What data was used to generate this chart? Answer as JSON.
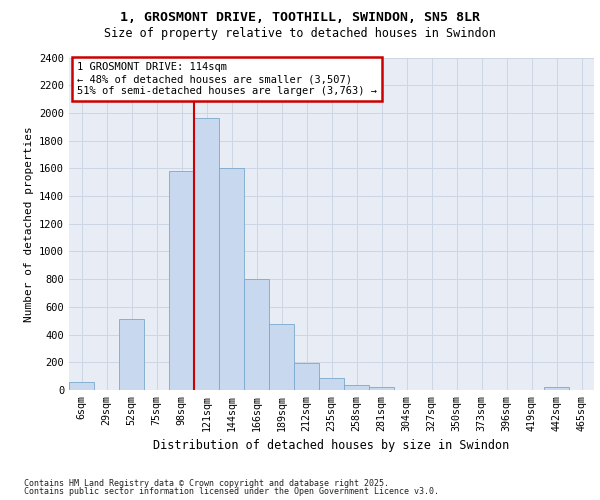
{
  "title_line1": "1, GROSMONT DRIVE, TOOTHILL, SWINDON, SN5 8LR",
  "title_line2": "Size of property relative to detached houses in Swindon",
  "xlabel": "Distribution of detached houses by size in Swindon",
  "ylabel": "Number of detached properties",
  "categories": [
    "6sqm",
    "29sqm",
    "52sqm",
    "75sqm",
    "98sqm",
    "121sqm",
    "144sqm",
    "166sqm",
    "189sqm",
    "212sqm",
    "235sqm",
    "258sqm",
    "281sqm",
    "304sqm",
    "327sqm",
    "350sqm",
    "373sqm",
    "396sqm",
    "419sqm",
    "442sqm",
    "465sqm"
  ],
  "values": [
    60,
    0,
    510,
    0,
    1580,
    1960,
    1600,
    800,
    480,
    195,
    90,
    35,
    20,
    0,
    0,
    0,
    0,
    0,
    0,
    20,
    0
  ],
  "bar_color": "#c8d8ee",
  "bar_edge_color": "#7aa8cc",
  "vline_color": "#cc0000",
  "vline_x": 4.5,
  "annotation_text": "1 GROSMONT DRIVE: 114sqm\n← 48% of detached houses are smaller (3,507)\n51% of semi-detached houses are larger (3,763) →",
  "annotation_box_edgecolor": "#cc0000",
  "ylim_max": 2400,
  "yticks": [
    0,
    200,
    400,
    600,
    800,
    1000,
    1200,
    1400,
    1600,
    1800,
    2000,
    2200,
    2400
  ],
  "grid_color": "#ccd6e4",
  "bg_color": "#e8edf5",
  "footnote_line1": "Contains HM Land Registry data © Crown copyright and database right 2025.",
  "footnote_line2": "Contains public sector information licensed under the Open Government Licence v3.0."
}
